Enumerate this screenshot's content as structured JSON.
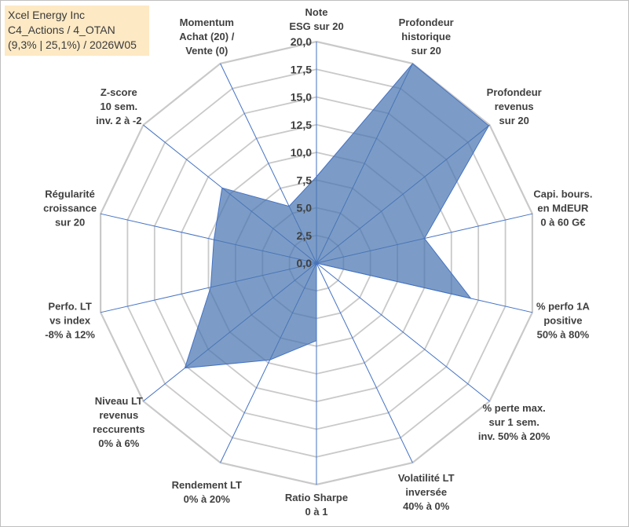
{
  "header": {
    "company": "Xcel Energy Inc",
    "portfolio": "C4_Actions / 4_OTAN",
    "stats": "(9,3% | 25,1%) / 2026W05"
  },
  "chart_data": {
    "type": "radar",
    "title": "",
    "range": [
      0,
      20
    ],
    "ticks": [
      "0,0",
      "2,5",
      "5,0",
      "7,5",
      "10,0",
      "12,5",
      "15,0",
      "17,5",
      "20,0"
    ],
    "axes": [
      {
        "label": [
          "Note",
          "ESG sur 20"
        ]
      },
      {
        "label": [
          "Profondeur",
          "historique",
          "sur 20"
        ]
      },
      {
        "label": [
          "Profondeur",
          "revenus",
          "sur 20"
        ]
      },
      {
        "label": [
          "Capi. bours.",
          "en MdEUR",
          "0 à 60 G€"
        ]
      },
      {
        "label": [
          "% perfo 1A",
          "positive",
          "50% à 80%"
        ]
      },
      {
        "label": [
          "% perte max.",
          "sur 1 sem.",
          "inv. 50% à 20%"
        ]
      },
      {
        "label": [
          "Volatilité LT",
          "inversée",
          "40% à 0%"
        ]
      },
      {
        "label": [
          "Ratio Sharpe",
          "0 à 1"
        ]
      },
      {
        "label": [
          "Rendement LT",
          "0% à 20%"
        ]
      },
      {
        "label": [
          "Niveau LT",
          "revenus",
          "reccurents",
          "0% à 6%"
        ]
      },
      {
        "label": [
          "Perfo. LT",
          "vs index",
          "-8% à 12%"
        ]
      },
      {
        "label": [
          "Régularité",
          "croissance",
          "sur 20"
        ]
      },
      {
        "label": [
          "Z-score",
          "10 sem.",
          "inv. 2 à -2"
        ]
      },
      {
        "label": [
          "Momentum",
          "Achat (20) /",
          "Vente (0)"
        ]
      }
    ],
    "series": [
      {
        "name": "Xcel Energy Inc",
        "values": [
          7.8,
          20.0,
          19.9,
          10.0,
          14.3,
          0.0,
          0.0,
          7.0,
          9.7,
          15.2,
          9.8,
          9.5,
          10.9,
          5.7
        ]
      }
    ]
  }
}
